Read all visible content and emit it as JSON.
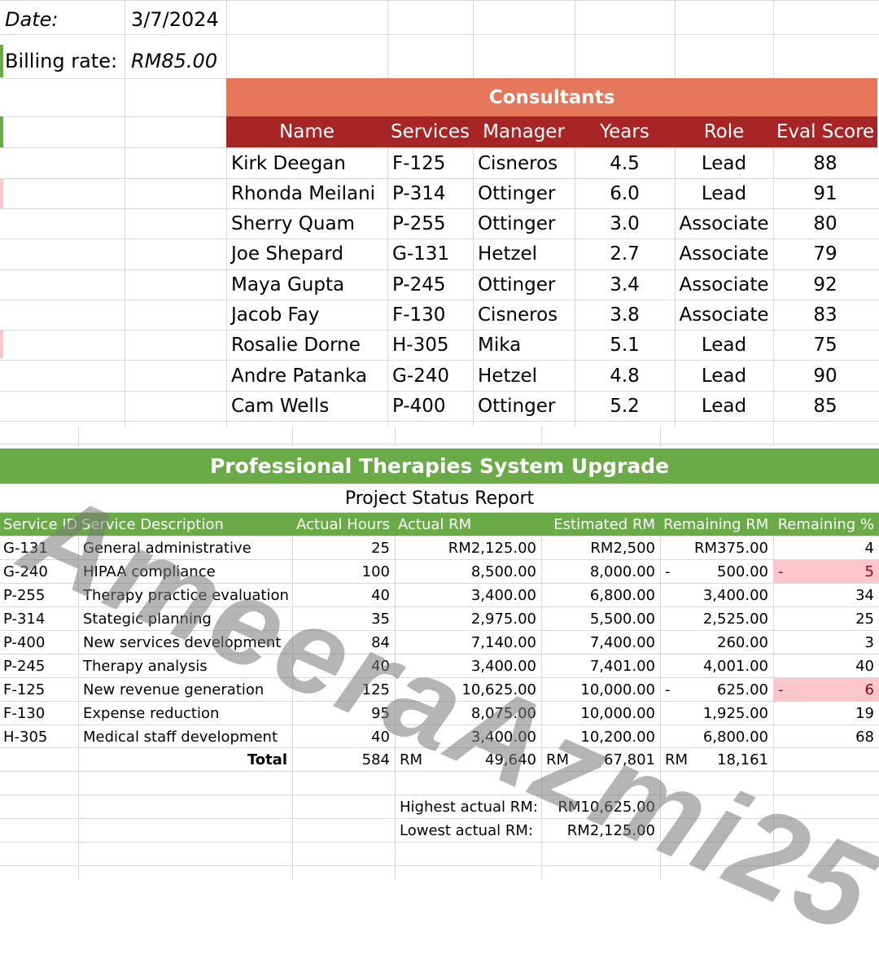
{
  "header": {
    "date_label": "Date:",
    "date_value": "3/7/2024",
    "rate_label": "Billing rate:",
    "rate_value": "RM85.00"
  },
  "consultants": {
    "title": "Consultants",
    "columns": [
      "Name",
      "Services",
      "Manager",
      "Years",
      "Role",
      "Eval Score"
    ],
    "rows": [
      [
        "Kirk Deegan",
        "F-125",
        "Cisneros",
        "4.5",
        "Lead",
        "88"
      ],
      [
        "Rhonda Meilani",
        "P-314",
        "Ottinger",
        "6.0",
        "Lead",
        "91"
      ],
      [
        "Sherry Quam",
        "P-255",
        "Ottinger",
        "3.0",
        "Associate",
        "80"
      ],
      [
        "Joe Shepard",
        "G-131",
        "Hetzel",
        "2.7",
        "Associate",
        "79"
      ],
      [
        "Maya Gupta",
        "P-245",
        "Ottinger",
        "3.4",
        "Associate",
        "92"
      ],
      [
        "Jacob Fay",
        "F-130",
        "Cisneros",
        "3.8",
        "Associate",
        "83"
      ],
      [
        "Rosalie Dorne",
        "H-305",
        "Mika",
        "5.1",
        "Lead",
        "75"
      ],
      [
        "Andre Patanka",
        "G-240",
        "Hetzel",
        "4.8",
        "Lead",
        "90"
      ],
      [
        "Cam Wells",
        "P-400",
        "Ottinger",
        "5.2",
        "Lead",
        "85"
      ]
    ]
  },
  "project": {
    "title": "Professional Therapies System Upgrade",
    "subtitle": "Project Status Report",
    "columns": [
      "Service ID",
      "Service Description",
      "Actual Hours",
      "Actual RM",
      "Estimated RM",
      "Remaining RM",
      "Remaining %"
    ],
    "rows": [
      [
        "G-131",
        "General administrative",
        "25",
        "RM2,125.00",
        "RM2,500",
        "",
        "RM375.00",
        "",
        "4"
      ],
      [
        "G-240",
        "HIPAA compliance",
        "100",
        "8,500.00",
        "8,000.00",
        "-",
        "500.00",
        "-",
        "5"
      ],
      [
        "P-255",
        "Therapy practice evaluation",
        "40",
        "3,400.00",
        "6,800.00",
        "",
        "3,400.00",
        "",
        "34"
      ],
      [
        "P-314",
        "Stategic planning",
        "35",
        "2,975.00",
        "5,500.00",
        "",
        "2,525.00",
        "",
        "25"
      ],
      [
        "P-400",
        "New services development",
        "84",
        "7,140.00",
        "7,400.00",
        "",
        "260.00",
        "",
        "3"
      ],
      [
        "P-245",
        "Therapy analysis",
        "40",
        "3,400.00",
        "7,401.00",
        "",
        "4,001.00",
        "",
        "40"
      ],
      [
        "F-125",
        "New revenue generation",
        "125",
        "10,625.00",
        "10,000.00",
        "-",
        "625.00",
        "-",
        "6"
      ],
      [
        "F-130",
        "Expense reduction",
        "95",
        "8,075.00",
        "10,000.00",
        "",
        "1,925.00",
        "",
        "19"
      ],
      [
        "H-305",
        "Medical staff development",
        "40",
        "3,400.00",
        "10,200.00",
        "",
        "6,800.00",
        "",
        "68"
      ]
    ],
    "highlight_rows": [
      1,
      6
    ],
    "total": {
      "label": "Total",
      "hours": "584",
      "actual_prefix": "RM",
      "actual": "49,640",
      "estimated_prefix": "RM",
      "estimated": "67,801",
      "remaining_prefix": "RM",
      "remaining": "18,161"
    },
    "highest_label": "Highest actual RM:",
    "highest_value": "RM10,625.00",
    "lowest_label": "Lowest actual RM:",
    "lowest_value": "RM2,125.00"
  },
  "watermark": "AmeeraAzmi25",
  "colors": {
    "orange_header": "#e6775a",
    "red_header": "#a82526",
    "green_header": "#6aab48",
    "negative_fill": "#fdc6cb",
    "negative_text": "#9c0006"
  }
}
